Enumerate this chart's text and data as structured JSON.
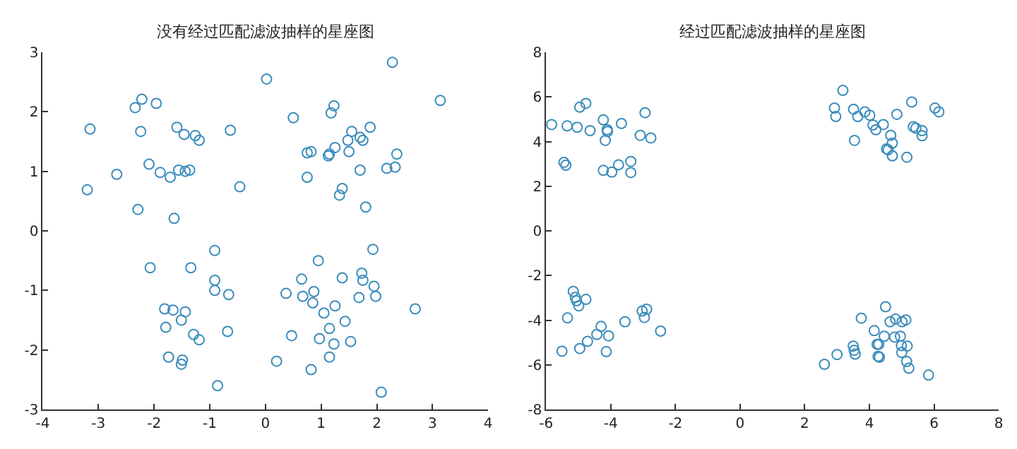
{
  "chart_data": [
    {
      "type": "scatter",
      "title": "没有经过匹配滤波抽样的星座图",
      "marker": "circle",
      "grid": false,
      "color": "#3c8dbc",
      "x": [
        -3.15,
        -2.34,
        -2.22,
        -1.96,
        -2.24,
        -1.59,
        -1.46,
        -1.26,
        -1.19,
        -0.63,
        0.02,
        0.5,
        1.18,
        1.23,
        2.28,
        3.14,
        1.55,
        1.48,
        1.7,
        1.75,
        1.88,
        0.75,
        0.82,
        1.13,
        1.15,
        1.25,
        1.5,
        2.36,
        2.18,
        2.33,
        1.7,
        0.75,
        1.38,
        1.33,
        1.8,
        -2.67,
        -3.2,
        -2.09,
        -1.89,
        -1.71,
        -1.56,
        -1.44,
        -1.36,
        -0.46,
        -2.29,
        -1.64,
        -2.07,
        -1.34,
        -0.91,
        -0.91,
        -0.91,
        -0.66,
        -1.81,
        -1.66,
        -1.44,
        -1.51,
        -1.79,
        -1.29,
        -1.19,
        -0.68,
        -1.74,
        -1.49,
        -1.51,
        -0.86,
        1.93,
        0.95,
        0.65,
        1.38,
        1.73,
        1.75,
        1.95,
        1.98,
        1.68,
        0.37,
        0.67,
        0.87,
        0.85,
        1.05,
        1.25,
        1.43,
        1.15,
        0.47,
        0.97,
        1.23,
        1.53,
        0.2,
        1.15,
        0.82,
        2.08,
        2.69
      ],
      "values": [
        1.71,
        2.07,
        2.21,
        2.14,
        1.67,
        1.74,
        1.62,
        1.6,
        1.52,
        1.69,
        2.55,
        1.9,
        1.98,
        2.1,
        2.83,
        2.19,
        1.67,
        1.52,
        1.57,
        1.52,
        1.74,
        1.31,
        1.33,
        1.26,
        1.29,
        1.4,
        1.33,
        1.29,
        1.05,
        1.07,
        1.02,
        0.9,
        0.71,
        0.6,
        0.4,
        0.95,
        0.69,
        1.12,
        0.98,
        0.9,
        1.02,
        1.0,
        1.02,
        0.74,
        0.36,
        0.21,
        -0.62,
        -0.62,
        -0.33,
        -0.83,
        -1.0,
        -1.07,
        -1.31,
        -1.33,
        -1.36,
        -1.5,
        -1.62,
        -1.74,
        -1.83,
        -1.69,
        -2.12,
        -2.17,
        -2.24,
        -2.6,
        -0.31,
        -0.5,
        -0.81,
        -0.79,
        -0.71,
        -0.83,
        -0.93,
        -1.1,
        -1.12,
        -1.05,
        -1.1,
        -1.02,
        -1.21,
        -1.38,
        -1.26,
        -1.52,
        -1.64,
        -1.76,
        -1.81,
        -1.9,
        -1.86,
        -2.19,
        -2.12,
        -2.33,
        -2.71,
        -1.31
      ],
      "xlim": [
        -4,
        4
      ],
      "xticks": [
        -4,
        -3,
        -2,
        -1,
        0,
        1,
        2,
        3,
        4
      ],
      "ylim": [
        -3,
        3
      ],
      "yticks": [
        -3,
        -2,
        -1,
        0,
        1,
        2,
        3
      ]
    },
    {
      "type": "scatter",
      "title": "经过匹配滤波抽样的星座图",
      "marker": "circle",
      "grid": false,
      "color": "#3c8dbc",
      "x": [
        -5.83,
        -5.35,
        -5.04,
        -4.64,
        -4.96,
        -4.77,
        -4.23,
        -4.11,
        -4.1,
        -4.17,
        -3.67,
        -2.94,
        -3.09,
        -2.76,
        -5.45,
        -5.39,
        -4.23,
        -3.97,
        -3.76,
        -3.38,
        -3.38,
        2.92,
        2.96,
        3.18,
        3.51,
        3.64,
        3.86,
        4.01,
        3.54,
        4.11,
        4.2,
        4.43,
        4.85,
        5.31,
        4.66,
        4.71,
        4.53,
        4.58,
        4.71,
        5.16,
        5.36,
        5.44,
        5.63,
        5.63,
        6.03,
        6.15,
        -5.16,
        -5.1,
        -5.06,
        -4.77,
        -4.99,
        -5.34,
        -5.51,
        -4.96,
        -4.72,
        -4.3,
        -4.43,
        -4.07,
        -4.14,
        -3.56,
        -3.03,
        -2.89,
        -2.96,
        -2.46,
        2.61,
        3.0,
        3.5,
        3.53,
        3.56,
        3.75,
        4.15,
        4.24,
        4.29,
        4.27,
        4.31,
        4.5,
        4.64,
        4.46,
        4.81,
        4.78,
        5.01,
        5.13,
        4.96,
        4.99,
        5.17,
        5.0,
        5.15,
        5.22,
        5.83
      ],
      "values": [
        4.76,
        4.7,
        4.64,
        4.49,
        5.54,
        5.71,
        4.97,
        4.53,
        4.45,
        4.05,
        4.81,
        5.29,
        4.28,
        4.16,
        3.07,
        2.94,
        2.71,
        2.63,
        2.96,
        3.11,
        2.61,
        5.5,
        5.12,
        6.29,
        5.45,
        5.12,
        5.33,
        5.18,
        4.05,
        4.74,
        4.53,
        4.76,
        5.22,
        5.77,
        4.28,
        3.93,
        3.67,
        3.63,
        3.36,
        3.3,
        4.66,
        4.6,
        4.49,
        4.26,
        5.5,
        5.33,
        -2.71,
        -2.98,
        -3.13,
        -3.07,
        -3.36,
        -3.9,
        -5.39,
        -5.27,
        -4.95,
        -4.28,
        -4.64,
        -4.7,
        -5.41,
        -4.07,
        -3.59,
        -3.51,
        -3.88,
        -4.49,
        -5.98,
        -5.54,
        -5.16,
        -5.35,
        -5.52,
        -3.91,
        -4.47,
        -5.08,
        -5.08,
        -5.62,
        -5.66,
        -3.4,
        -4.07,
        -4.72,
        -3.95,
        -4.76,
        -4.07,
        -3.99,
        -4.72,
        -5.14,
        -5.16,
        -5.45,
        -5.85,
        -6.15,
        -6.46
      ],
      "xlim": [
        -6,
        8
      ],
      "xticks": [
        -6,
        -4,
        -2,
        0,
        2,
        4,
        6,
        8
      ],
      "ylim": [
        -8,
        8
      ],
      "yticks": [
        -8,
        -6,
        -4,
        -2,
        0,
        2,
        4,
        6,
        8
      ]
    }
  ]
}
